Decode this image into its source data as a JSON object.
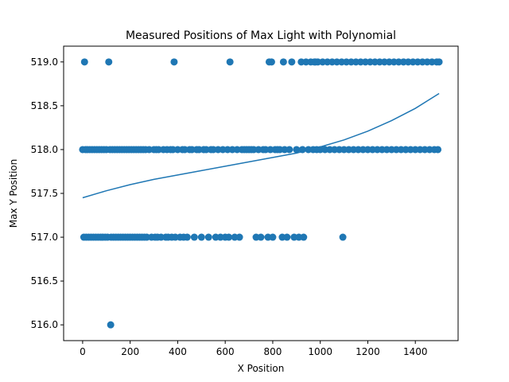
{
  "chart_data": {
    "type": "scatter",
    "title": "Measured Positions of Max Light with Polynomial",
    "xlabel": "X Position",
    "ylabel": "Max Y Position",
    "xlim": [
      -80,
      1580
    ],
    "ylim": [
      515.82,
      519.18
    ],
    "xticks": [
      0,
      200,
      400,
      600,
      800,
      1000,
      1200,
      1400
    ],
    "yticks": [
      516.0,
      516.5,
      517.0,
      517.5,
      518.0,
      518.5,
      519.0
    ],
    "xtick_labels": [
      "0",
      "200",
      "400",
      "600",
      "800",
      "1000",
      "1200",
      "1400"
    ],
    "ytick_labels": [
      "516.0",
      "516.5",
      "517.0",
      "517.5",
      "518.0",
      "518.5",
      "519.0"
    ],
    "grid": false,
    "series": [
      {
        "kind": "scatter",
        "color": "#1f77b4",
        "points": [
          [
            0,
            518
          ],
          [
            5,
            517
          ],
          [
            8,
            519
          ],
          [
            12,
            518
          ],
          [
            15,
            517
          ],
          [
            20,
            518
          ],
          [
            25,
            517
          ],
          [
            30,
            518
          ],
          [
            35,
            517
          ],
          [
            40,
            518
          ],
          [
            45,
            517
          ],
          [
            50,
            518
          ],
          [
            55,
            517
          ],
          [
            60,
            518
          ],
          [
            65,
            517
          ],
          [
            70,
            518
          ],
          [
            75,
            517
          ],
          [
            80,
            518
          ],
          [
            85,
            517
          ],
          [
            90,
            518
          ],
          [
            95,
            517
          ],
          [
            100,
            518
          ],
          [
            105,
            517
          ],
          [
            110,
            519
          ],
          [
            115,
            518
          ],
          [
            118,
            516
          ],
          [
            120,
            517
          ],
          [
            125,
            518
          ],
          [
            130,
            517
          ],
          [
            135,
            518
          ],
          [
            140,
            517
          ],
          [
            145,
            518
          ],
          [
            150,
            517
          ],
          [
            155,
            518
          ],
          [
            160,
            517
          ],
          [
            165,
            518
          ],
          [
            170,
            517
          ],
          [
            175,
            518
          ],
          [
            180,
            517
          ],
          [
            185,
            518
          ],
          [
            190,
            517
          ],
          [
            195,
            518
          ],
          [
            200,
            517
          ],
          [
            205,
            518
          ],
          [
            210,
            517
          ],
          [
            215,
            518
          ],
          [
            220,
            517
          ],
          [
            225,
            518
          ],
          [
            230,
            517
          ],
          [
            235,
            518
          ],
          [
            240,
            517
          ],
          [
            245,
            518
          ],
          [
            250,
            517
          ],
          [
            255,
            518
          ],
          [
            260,
            517
          ],
          [
            265,
            518
          ],
          [
            270,
            517
          ],
          [
            280,
            518
          ],
          [
            290,
            517
          ],
          [
            300,
            518
          ],
          [
            305,
            517
          ],
          [
            310,
            518
          ],
          [
            315,
            517
          ],
          [
            320,
            518
          ],
          [
            330,
            517
          ],
          [
            340,
            518
          ],
          [
            350,
            517
          ],
          [
            355,
            518
          ],
          [
            360,
            517
          ],
          [
            370,
            518
          ],
          [
            375,
            517
          ],
          [
            380,
            518
          ],
          [
            385,
            519
          ],
          [
            390,
            517
          ],
          [
            400,
            518
          ],
          [
            410,
            517
          ],
          [
            420,
            518
          ],
          [
            425,
            517
          ],
          [
            430,
            518
          ],
          [
            440,
            517
          ],
          [
            450,
            518
          ],
          [
            460,
            518
          ],
          [
            470,
            517
          ],
          [
            480,
            518
          ],
          [
            490,
            518
          ],
          [
            500,
            517
          ],
          [
            510,
            518
          ],
          [
            520,
            518
          ],
          [
            530,
            517
          ],
          [
            540,
            518
          ],
          [
            550,
            518
          ],
          [
            560,
            517
          ],
          [
            570,
            518
          ],
          [
            580,
            517
          ],
          [
            590,
            518
          ],
          [
            600,
            517
          ],
          [
            610,
            518
          ],
          [
            615,
            517
          ],
          [
            620,
            519
          ],
          [
            630,
            518
          ],
          [
            640,
            517
          ],
          [
            650,
            518
          ],
          [
            660,
            517
          ],
          [
            670,
            518
          ],
          [
            680,
            518
          ],
          [
            690,
            518
          ],
          [
            700,
            518
          ],
          [
            710,
            518
          ],
          [
            720,
            518
          ],
          [
            730,
            517
          ],
          [
            740,
            518
          ],
          [
            750,
            517
          ],
          [
            760,
            518
          ],
          [
            770,
            518
          ],
          [
            780,
            517
          ],
          [
            785,
            519
          ],
          [
            790,
            518
          ],
          [
            795,
            519
          ],
          [
            800,
            517
          ],
          [
            810,
            518
          ],
          [
            820,
            518
          ],
          [
            830,
            518
          ],
          [
            840,
            517
          ],
          [
            845,
            519
          ],
          [
            850,
            518
          ],
          [
            860,
            517
          ],
          [
            870,
            518
          ],
          [
            880,
            519
          ],
          [
            890,
            517
          ],
          [
            900,
            518
          ],
          [
            910,
            517
          ],
          [
            920,
            519
          ],
          [
            925,
            518
          ],
          [
            930,
            517
          ],
          [
            940,
            519
          ],
          [
            950,
            518
          ],
          [
            960,
            519
          ],
          [
            970,
            518
          ],
          [
            975,
            519
          ],
          [
            980,
            519
          ],
          [
            985,
            518
          ],
          [
            990,
            519
          ],
          [
            1000,
            518
          ],
          [
            1010,
            519
          ],
          [
            1020,
            518
          ],
          [
            1030,
            519
          ],
          [
            1040,
            518
          ],
          [
            1050,
            519
          ],
          [
            1060,
            518
          ],
          [
            1070,
            519
          ],
          [
            1080,
            518
          ],
          [
            1090,
            519
          ],
          [
            1095,
            517
          ],
          [
            1100,
            518
          ],
          [
            1110,
            519
          ],
          [
            1120,
            518
          ],
          [
            1130,
            519
          ],
          [
            1140,
            518
          ],
          [
            1150,
            519
          ],
          [
            1160,
            518
          ],
          [
            1170,
            519
          ],
          [
            1180,
            518
          ],
          [
            1190,
            519
          ],
          [
            1200,
            518
          ],
          [
            1210,
            519
          ],
          [
            1220,
            518
          ],
          [
            1230,
            519
          ],
          [
            1240,
            518
          ],
          [
            1250,
            519
          ],
          [
            1260,
            518
          ],
          [
            1270,
            519
          ],
          [
            1280,
            518
          ],
          [
            1290,
            519
          ],
          [
            1300,
            518
          ],
          [
            1310,
            519
          ],
          [
            1320,
            518
          ],
          [
            1330,
            519
          ],
          [
            1340,
            518
          ],
          [
            1350,
            519
          ],
          [
            1360,
            518
          ],
          [
            1370,
            519
          ],
          [
            1380,
            518
          ],
          [
            1390,
            519
          ],
          [
            1400,
            518
          ],
          [
            1410,
            519
          ],
          [
            1420,
            518
          ],
          [
            1430,
            519
          ],
          [
            1440,
            518
          ],
          [
            1450,
            519
          ],
          [
            1460,
            518
          ],
          [
            1470,
            519
          ],
          [
            1480,
            518
          ],
          [
            1490,
            519
          ],
          [
            1495,
            518
          ],
          [
            1500,
            519
          ]
        ]
      },
      {
        "kind": "line",
        "color": "#1f77b4",
        "x": [
          0,
          100,
          200,
          300,
          400,
          500,
          600,
          700,
          800,
          900,
          1000,
          1100,
          1200,
          1300,
          1400,
          1500
        ],
        "y": [
          517.45,
          517.53,
          517.6,
          517.66,
          517.71,
          517.76,
          517.81,
          517.86,
          517.91,
          517.96,
          518.03,
          518.11,
          518.21,
          518.33,
          518.47,
          518.64
        ]
      }
    ]
  }
}
